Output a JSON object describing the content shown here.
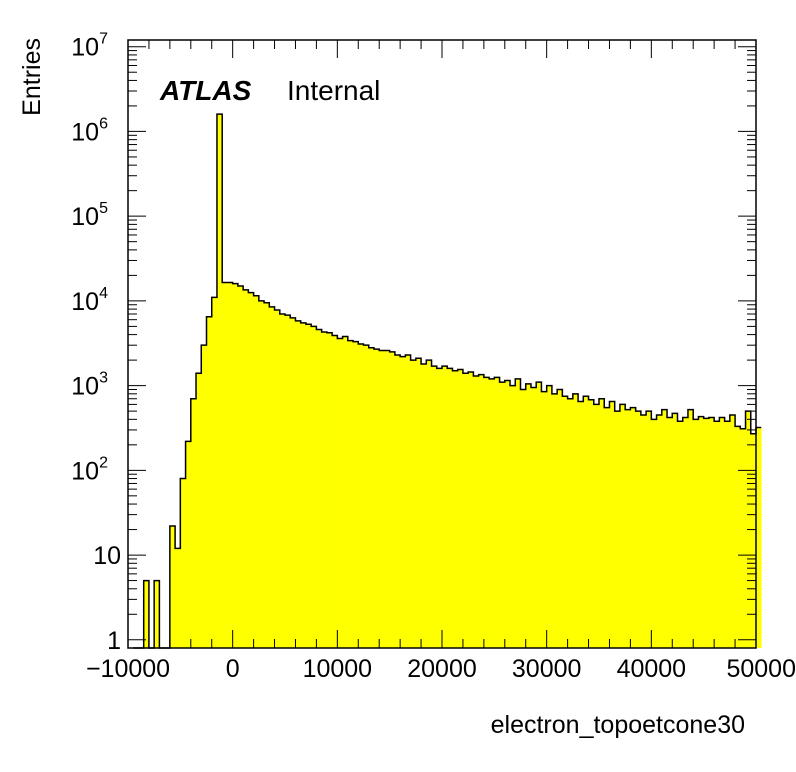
{
  "chart_data": {
    "type": "histogram",
    "xlabel": "electron_topoetcone30",
    "ylabel": "Entries",
    "annotation": {
      "bold": "ATLAS",
      "text": "Internal"
    },
    "xlim": [
      -10000,
      50000
    ],
    "ylim": [
      0.8,
      12000000
    ],
    "log_y": true,
    "grid": false,
    "fill_color": "#ffff00",
    "line_color": "#000000",
    "bin_width": 500,
    "x_start": -9500,
    "x_ticks": [
      "−10000",
      "0",
      "10000",
      "20000",
      "30000",
      "40000",
      "50000"
    ],
    "x_tick_values": [
      -10000,
      0,
      10000,
      20000,
      30000,
      40000,
      50000
    ],
    "y_ticks": [
      {
        "value": 1,
        "base": "1",
        "exp": ""
      },
      {
        "value": 10,
        "base": "10",
        "exp": ""
      },
      {
        "value": 100,
        "base": "10",
        "exp": "2"
      },
      {
        "value": 1000,
        "base": "10",
        "exp": "3"
      },
      {
        "value": 10000,
        "base": "10",
        "exp": "4"
      },
      {
        "value": 100000,
        "base": "10",
        "exp": "5"
      },
      {
        "value": 1000000,
        "base": "10",
        "exp": "6"
      },
      {
        "value": 10000000,
        "base": "10",
        "exp": "7"
      }
    ],
    "values": [
      0,
      0,
      5,
      0,
      5,
      0,
      0,
      22,
      12,
      80,
      220,
      700,
      1400,
      3000,
      6500,
      11000,
      1600000,
      16500,
      16500,
      16000,
      15000,
      13500,
      12500,
      11500,
      10000,
      9500,
      8500,
      7800,
      7000,
      6800,
      6300,
      5800,
      5500,
      5300,
      5000,
      4600,
      4300,
      4200,
      3900,
      3600,
      3800,
      3400,
      3300,
      3100,
      3000,
      2800,
      2700,
      2600,
      2600,
      2500,
      2300,
      2200,
      2300,
      2000,
      2100,
      1800,
      2000,
      1700,
      1600,
      1700,
      1600,
      1500,
      1550,
      1400,
      1450,
      1300,
      1350,
      1250,
      1200,
      1250,
      1100,
      1150,
      1000,
      1200,
      900,
      1050,
      950,
      1100,
      850,
      1000,
      800,
      900,
      750,
      700,
      800,
      650,
      750,
      680,
      600,
      700,
      550,
      650,
      500,
      600,
      520,
      550,
      500,
      450,
      500,
      400,
      450,
      520,
      420,
      470,
      380,
      420,
      520,
      400,
      430,
      410,
      420,
      380,
      420,
      380,
      450,
      330,
      310,
      500,
      270,
      320
    ]
  }
}
